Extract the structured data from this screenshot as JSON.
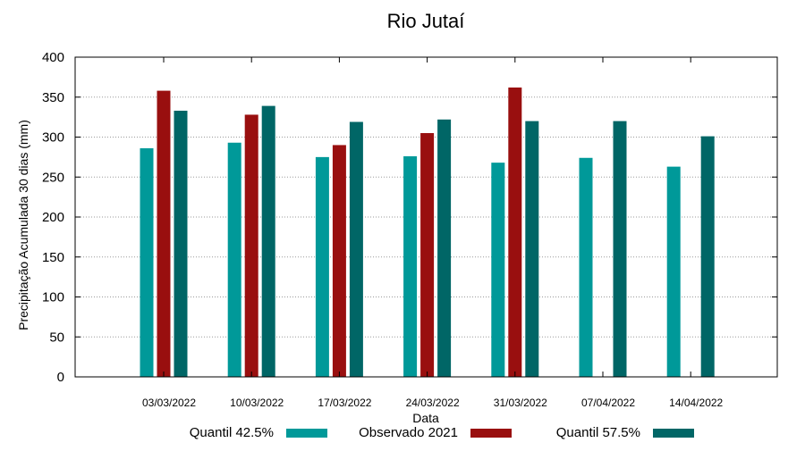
{
  "chart_data": {
    "type": "bar",
    "title": "Rio Jutaí",
    "xlabel": "Data",
    "ylabel": "Precipitação Acumulada 30 dias (mm)",
    "ylim": [
      0,
      400
    ],
    "yticks": [
      0,
      50,
      100,
      150,
      200,
      250,
      300,
      350,
      400
    ],
    "grid": true,
    "legend_position": "bottom",
    "categories": [
      "03/03/2022",
      "10/03/2022",
      "17/03/2022",
      "24/03/2022",
      "31/03/2022",
      "07/04/2022",
      "14/04/2022"
    ],
    "series": [
      {
        "name": "Quantil 42.5%",
        "color": "#009999",
        "values": [
          286,
          293,
          275,
          276,
          268,
          274,
          263
        ]
      },
      {
        "name": "Observado 2021",
        "color": "#990f0f",
        "values": [
          358,
          328,
          290,
          305,
          362,
          null,
          null
        ]
      },
      {
        "name": "Quantil 57.5%",
        "color": "#006666",
        "values": [
          333,
          339,
          319,
          322,
          320,
          320,
          301
        ]
      }
    ]
  }
}
